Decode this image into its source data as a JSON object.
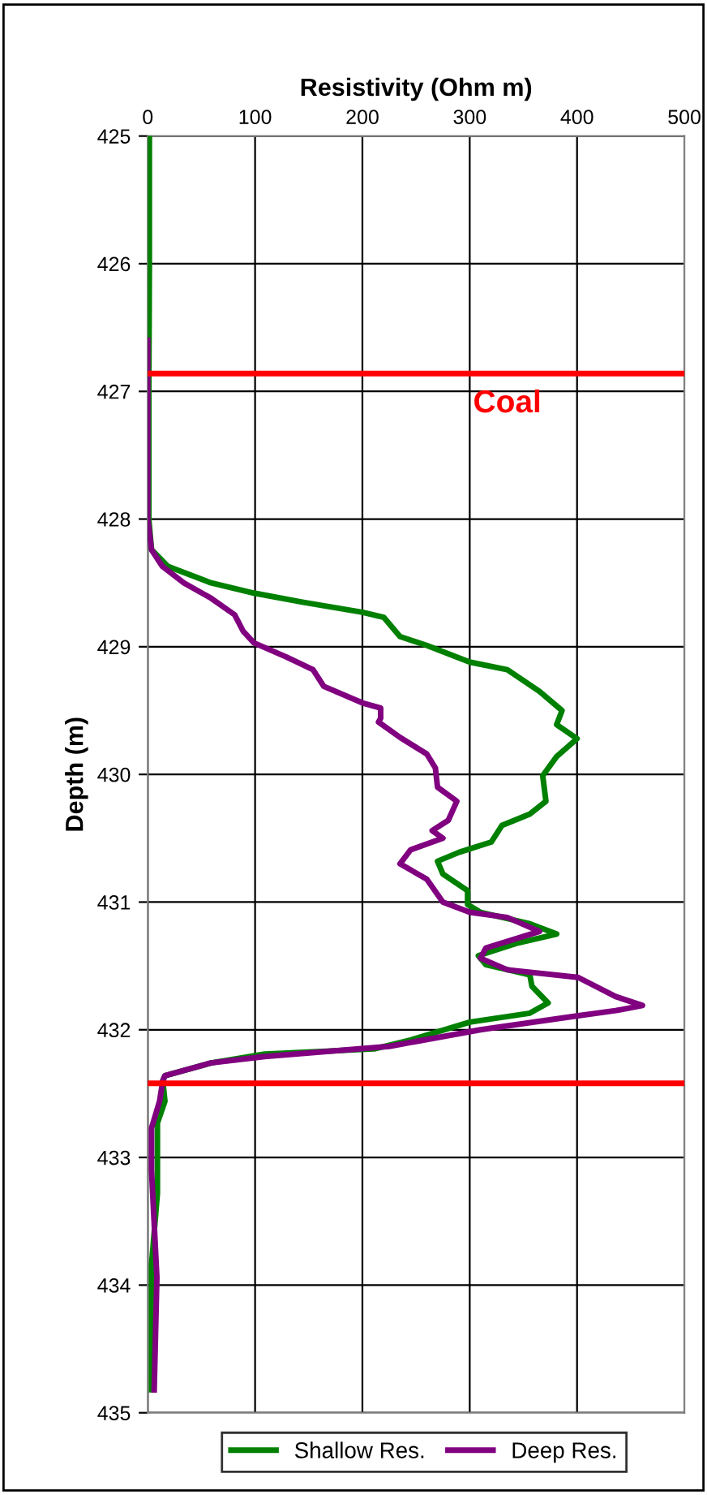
{
  "chart_data": {
    "type": "line",
    "xlabel": "Resistivity (Ohm m)",
    "ylabel": "Depth (m)",
    "xlim": [
      0,
      500
    ],
    "xticks": [
      0,
      100,
      200,
      300,
      400,
      500
    ],
    "ylim": [
      435,
      425
    ],
    "yticks": [
      425,
      426,
      427,
      428,
      429,
      430,
      431,
      432,
      433,
      434,
      435
    ],
    "grid": true,
    "legend": "bottom",
    "marker": "none",
    "line_style": "solid",
    "orientation": "horizontal",
    "series": [
      {
        "name": "Shallow Res.",
        "color": "#008000",
        "values": [
          1.5,
          1.5,
          1,
          1,
          3.5,
          18.6,
          59,
          99,
          144,
          200,
          220,
          235,
          260,
          300,
          335,
          365,
          386,
          381,
          400,
          381,
          368,
          371,
          356,
          330,
          320,
          290,
          270,
          275,
          298,
          298,
          310,
          356,
          381,
          345,
          308,
          315,
          356,
          358,
          373,
          356,
          300,
          245,
          211,
          109,
          59,
          16,
          14,
          16,
          9,
          9,
          3.5,
          3.5
        ],
        "x": [
          425,
          426,
          427,
          428,
          428.24,
          428.37,
          428.5,
          428.58,
          428.65,
          428.73,
          428.77,
          428.92,
          428.99,
          429.12,
          429.18,
          429.35,
          429.5,
          429.61,
          429.72,
          429.86,
          430.01,
          430.21,
          430.31,
          430.4,
          430.53,
          430.61,
          430.68,
          430.78,
          430.91,
          431.02,
          431.08,
          431.17,
          431.25,
          431.32,
          431.42,
          431.49,
          431.57,
          431.66,
          431.79,
          431.87,
          431.94,
          432.08,
          432.15,
          432.19,
          432.26,
          432.36,
          432.4,
          432.56,
          432.73,
          433.28,
          433.84,
          434.82
        ]
      },
      {
        "name": "Deep Res.",
        "color": "#800080",
        "values": [
          0,
          0,
          3.5,
          13.6,
          33.7,
          59,
          81,
          89,
          99,
          129,
          154,
          164,
          200,
          217,
          217,
          215,
          235,
          260,
          268,
          270,
          288,
          280,
          265,
          275,
          245,
          235,
          260,
          275,
          300,
          335,
          365,
          315,
          310,
          335,
          401,
          436,
          461,
          436,
          401,
          310,
          225,
          109,
          59,
          16,
          14,
          11,
          3.5,
          3.5,
          8.5,
          6
        ],
        "x": [
          426.6,
          428,
          428.24,
          428.37,
          428.5,
          428.62,
          428.75,
          428.88,
          428.97,
          429.08,
          429.18,
          429.31,
          429.44,
          429.48,
          429.56,
          429.59,
          429.71,
          429.84,
          429.95,
          430.1,
          430.21,
          430.36,
          430.44,
          430.5,
          430.59,
          430.7,
          430.82,
          431,
          431.08,
          431.12,
          431.23,
          431.36,
          431.44,
          431.53,
          431.59,
          431.74,
          431.81,
          431.85,
          431.89,
          432,
          432.13,
          432.21,
          432.26,
          432.36,
          432.4,
          432.56,
          432.77,
          433.1,
          433.94,
          434.82
        ]
      }
    ],
    "ref_lines": [
      {
        "axis": "y",
        "value": 426.86,
        "color": "#ff0000"
      },
      {
        "axis": "y",
        "value": 432.42,
        "color": "#ff0000"
      }
    ],
    "annotations": [
      "Coal"
    ]
  }
}
